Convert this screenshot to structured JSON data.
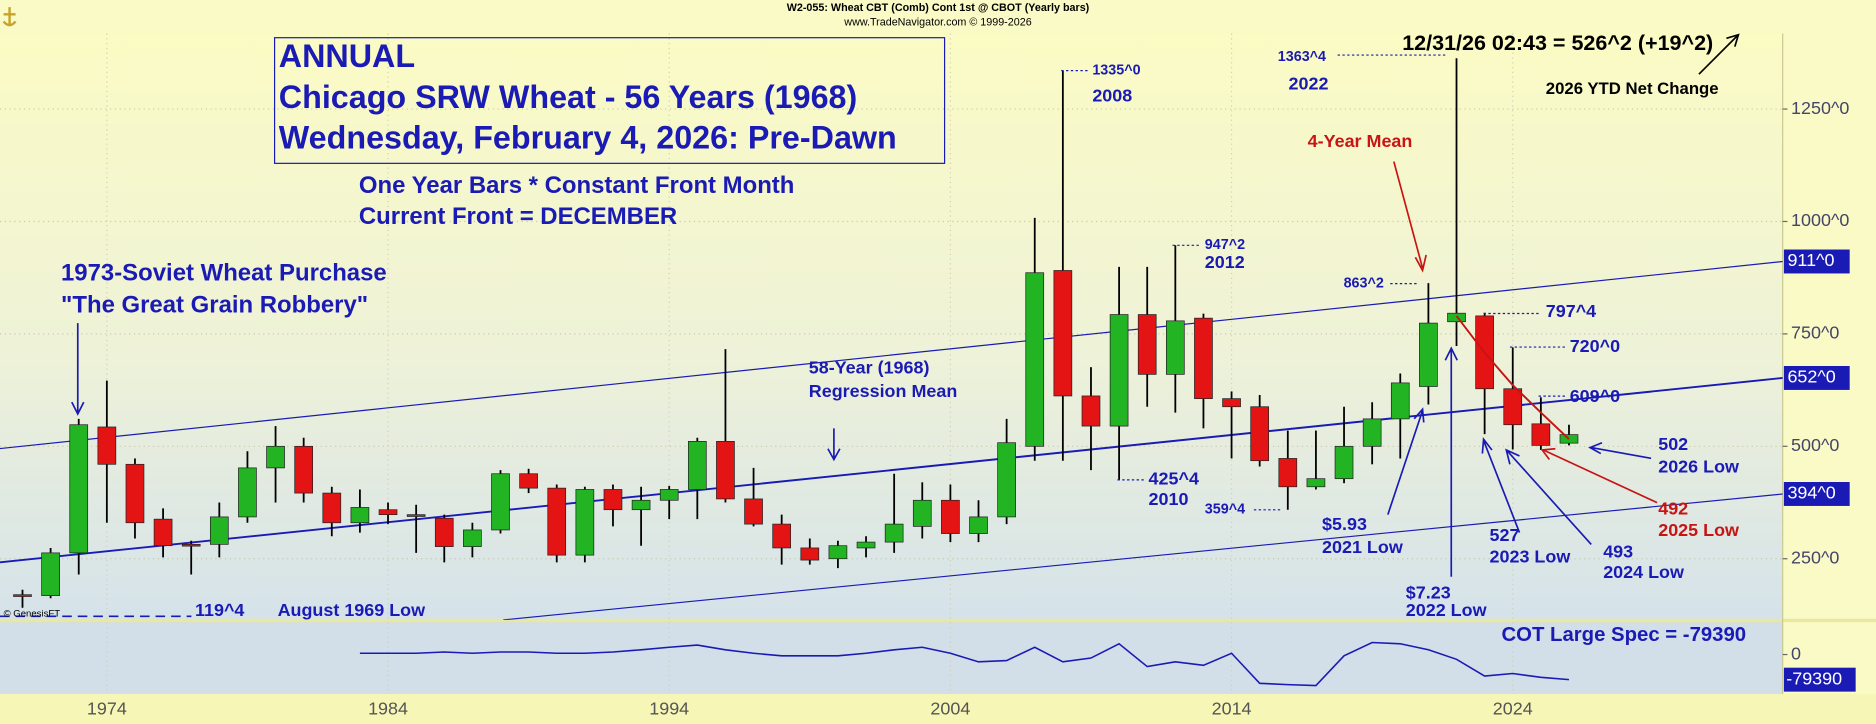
{
  "chart_data": [
    {
      "type": "candlestick",
      "title": "W2-055:  Wheat CBT (Comb) Cont 1st @ CBOT  (Yearly bars)",
      "subtitle": "www.TradeNavigator.com © 1999-2026",
      "x": [
        1971,
        1972,
        1973,
        1974,
        1975,
        1976,
        1977,
        1978,
        1979,
        1980,
        1981,
        1982,
        1983,
        1984,
        1985,
        1986,
        1987,
        1988,
        1989,
        1990,
        1991,
        1992,
        1993,
        1994,
        1995,
        1996,
        1997,
        1998,
        1999,
        2000,
        2001,
        2002,
        2003,
        2004,
        2005,
        2006,
        2007,
        2008,
        2009,
        2010,
        2011,
        2012,
        2013,
        2014,
        2015,
        2016,
        2017,
        2018,
        2019,
        2020,
        2021,
        2022,
        2023,
        2024,
        2025,
        2026
      ],
      "open": [
        170,
        168,
        263,
        543,
        460,
        338,
        282,
        282,
        343,
        452,
        500,
        396,
        330,
        359,
        348,
        340,
        277,
        314,
        439,
        407,
        258,
        404,
        359,
        380,
        404,
        511,
        383,
        327,
        274,
        250,
        274,
        287,
        322,
        380,
        306,
        343,
        500,
        891,
        612,
        545,
        793,
        660,
        785,
        606,
        588,
        473,
        410,
        428,
        500,
        561,
        633,
        777,
        790,
        628,
        550,
        507
      ],
      "high": [
        181,
        274,
        561,
        646,
        473,
        362,
        290,
        375,
        489,
        545,
        519,
        410,
        404,
        375,
        370,
        348,
        330,
        447,
        450,
        415,
        410,
        415,
        410,
        412,
        519,
        716,
        452,
        348,
        295,
        290,
        300,
        439,
        420,
        415,
        380,
        561,
        1008,
        1335,
        676,
        899,
        899,
        947,
        795,
        622,
        614,
        535,
        535,
        588,
        598,
        662,
        863,
        1363,
        797,
        720,
        609,
        548
      ],
      "low": [
        141,
        162,
        215,
        330,
        295,
        253,
        215,
        253,
        330,
        375,
        375,
        300,
        308,
        327,
        263,
        242,
        253,
        306,
        396,
        242,
        242,
        322,
        279,
        338,
        338,
        375,
        322,
        237,
        237,
        229,
        253,
        263,
        295,
        287,
        287,
        327,
        468,
        468,
        447,
        425,
        588,
        575,
        540,
        473,
        455,
        359,
        404,
        418,
        460,
        473,
        593,
        723,
        527,
        493,
        492,
        502
      ],
      "close": [
        168,
        263,
        548,
        460,
        330,
        279,
        279,
        343,
        452,
        500,
        396,
        330,
        364,
        348,
        346,
        277,
        314,
        439,
        407,
        258,
        404,
        359,
        380,
        404,
        511,
        383,
        327,
        274,
        247,
        279,
        287,
        327,
        380,
        306,
        343,
        508,
        886,
        612,
        545,
        793,
        660,
        779,
        606,
        588,
        468,
        410,
        428,
        500,
        561,
        641,
        774,
        796,
        628,
        548,
        502,
        526
      ],
      "up_color": "#22b422",
      "down_color": "#e41414",
      "xlim": [
        1970.2,
        2033.6
      ],
      "xticks": [
        1974,
        1984,
        1994,
        2004,
        2014,
        2024
      ],
      "ylim": [
        114,
        1418
      ],
      "yticks": [
        {
          "value": 250,
          "label": "250^0"
        },
        {
          "value": 500,
          "label": "500^0"
        },
        {
          "value": 750,
          "label": "750^0"
        },
        {
          "value": 1000,
          "label": "1000^0"
        },
        {
          "value": 1250,
          "label": "1250^0"
        }
      ],
      "grid": true,
      "channel": [
        {
          "x": [
            1970.2,
            2033.6
          ],
          "values": [
            495,
            911
          ],
          "end_label": "911^0",
          "color": "#1a1ab4"
        },
        {
          "x": [
            1970.2,
            2033.6
          ],
          "values": [
            242,
            652
          ],
          "end_label": "652^0",
          "color": "#1a1ab4"
        },
        {
          "x": [
            1988.1,
            2033.6
          ],
          "values": [
            114,
            394
          ],
          "end_label": "394^0",
          "color": "#1a1ab4"
        }
      ],
      "mean_line": {
        "x": [
          2022,
          2023,
          2024,
          2025,
          2026
        ],
        "values": [
          790,
          708,
          636,
          575,
          516
        ],
        "color": "#c81414"
      },
      "annotations": [
        "ANNUAL",
        "Chicago SRW Wheat - 56 Years (1968)",
        "Wednesday, February 4, 2026: Pre-Dawn",
        "One Year Bars * Constant Front Month",
        "Current Front = DECEMBER",
        "1973-Soviet Wheat Purchase",
        "\"The Great Grain Robbery\"",
        "58-Year (1968)",
        "Regression Mean",
        "1335^0",
        "2008",
        "1363^4",
        "2022",
        "4-Year Mean",
        "947^2",
        "2012",
        "863^2",
        "797^4",
        "720^0",
        "609^0",
        "425^4",
        "2010",
        "359^4",
        "$5.93",
        "2021 Low",
        "527",
        "2023 Low",
        "493",
        "2024 Low",
        "502",
        "2026 Low",
        "492",
        "2025 Low",
        "$7.23",
        "2022 Low",
        "119^4",
        "August 1969 Low",
        "12/31/26 02:43 = 526^2 (+19^2)",
        "2026 YTD Net Change",
        "COT Large Spec = -79390",
        "© GenesisFT"
      ]
    },
    {
      "type": "line",
      "x": [
        1983,
        1984,
        1985,
        1986,
        1987,
        1988,
        1989,
        1990,
        1991,
        1992,
        1993,
        1994,
        1995,
        1996,
        1997,
        1998,
        1999,
        2000,
        2001,
        2002,
        2003,
        2004,
        2005,
        2006,
        2007,
        2008,
        2009,
        2010,
        2011,
        2012,
        2013,
        2014,
        2015,
        2016,
        2017,
        2018,
        2019,
        2020,
        2021,
        2022,
        2023,
        2024,
        2025,
        2026
      ],
      "values": [
        4000,
        4000,
        4000,
        8000,
        4000,
        8000,
        8000,
        4000,
        4000,
        8000,
        15000,
        23000,
        30000,
        15000,
        4000,
        -4000,
        -4000,
        -4000,
        4000,
        15000,
        23000,
        4000,
        -23000,
        -19000,
        23000,
        -23000,
        -11000,
        34000,
        -38000,
        -23000,
        -34000,
        4000,
        -91000,
        -95000,
        -98000,
        -4000,
        38000,
        34000,
        15000,
        -15000,
        -68000,
        -60000,
        -72000,
        -79390
      ],
      "color": "#1a1ab4",
      "xlim": [
        1970.2,
        2033.6
      ],
      "ylim": [
        -125000,
        102000
      ],
      "yticks": [
        0
      ]
    }
  ]
}
